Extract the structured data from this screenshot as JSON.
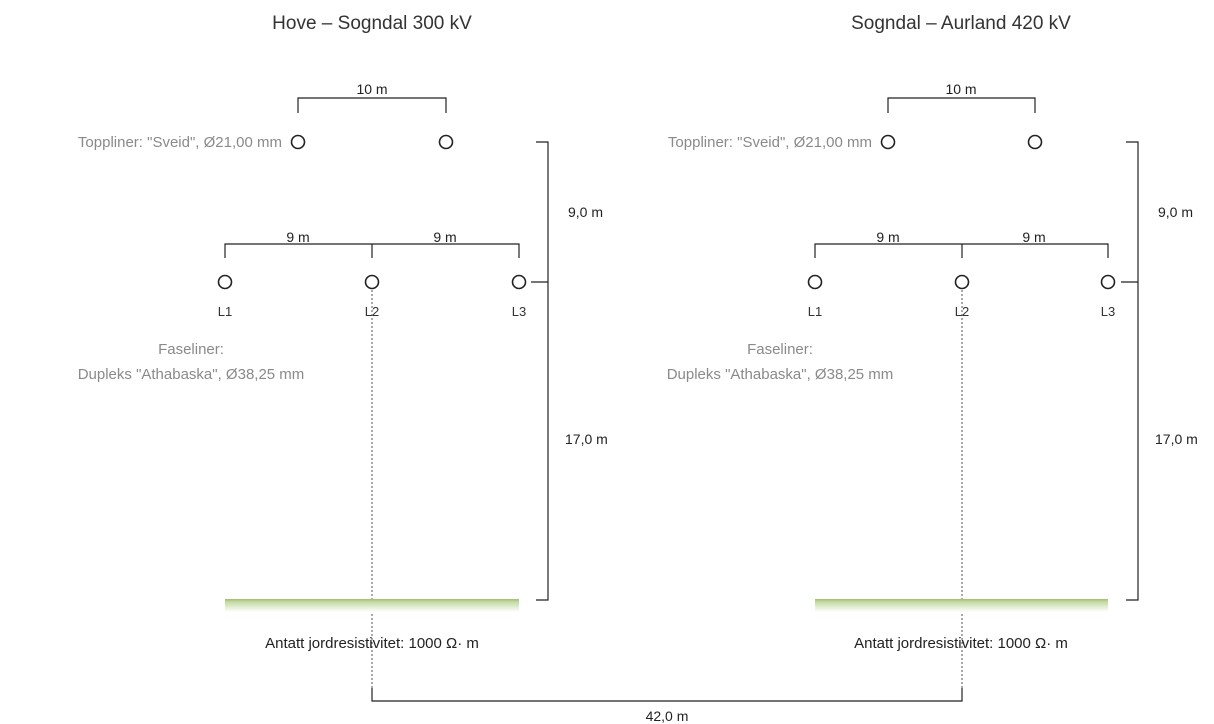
{
  "diagram": {
    "left": {
      "title": "Hove – Sogndal 300 kV",
      "top_spacing": "10 m",
      "topline_label": "Toppliner: \"Sveid\", Ø21,00 mm",
      "phase_spacing_left": "9 m",
      "phase_spacing_right": "9 m",
      "phases": [
        "L1",
        "L2",
        "L3"
      ],
      "faseliner_line1": "Faseliner:",
      "faseliner_line2": "Dupleks \"Athabaska\", Ø38,25 mm",
      "height_upper": "9,0 m",
      "height_lower": "17,0 m",
      "ground_label": "Antatt jordresistivitet: 1000 Ω· m"
    },
    "right": {
      "title": "Sogndal – Aurland 420 kV",
      "top_spacing": "10 m",
      "topline_label": "Toppliner: \"Sveid\", Ø21,00 mm",
      "phase_spacing_left": "9 m",
      "phase_spacing_right": "9 m",
      "phases": [
        "L1",
        "L2",
        "L3"
      ],
      "faseliner_line1": "Faseliner:",
      "faseliner_line2": "Dupleks \"Athabaska\", Ø38,25 mm",
      "height_upper": "9,0 m",
      "height_lower": "17,0 m",
      "ground_label": "Antatt jordresistivitet: 1000 Ω· m"
    },
    "separation": "42,0 m",
    "colors": {
      "ground": "#c6dca6",
      "line": "#222222",
      "gray_text": "#8a8a8a"
    }
  }
}
